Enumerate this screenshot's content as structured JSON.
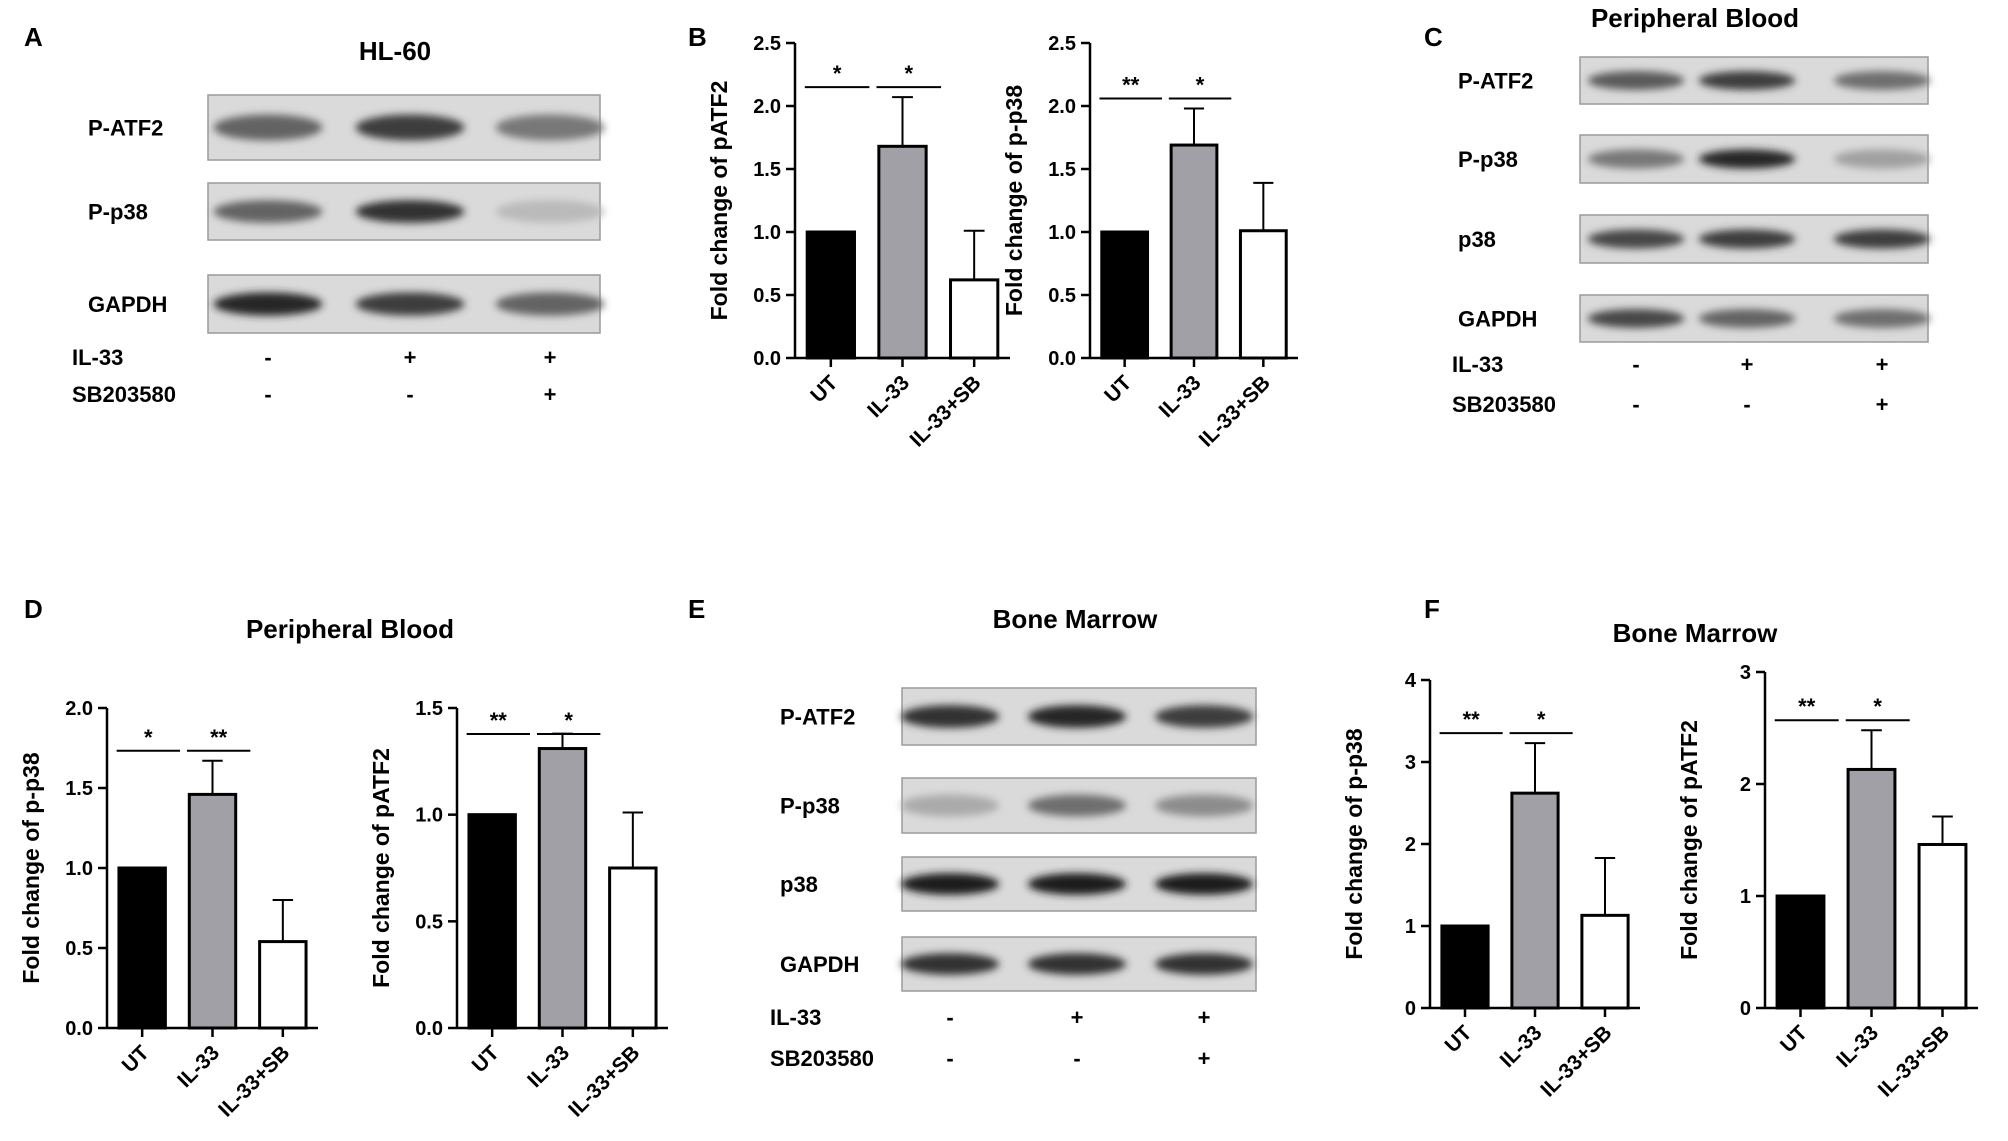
{
  "figure": {
    "panel_labels": [
      "A",
      "B",
      "C",
      "D",
      "E",
      "F"
    ],
    "titles": {
      "A": "HL-60",
      "C": "Peripheral Blood",
      "D": "Peripheral Blood",
      "E": "Bone Marrow",
      "F": "Bone Marrow"
    }
  },
  "blots": {
    "A": {
      "rows": [
        "P-ATF2",
        "P-p38",
        "GAPDH"
      ],
      "treatments": [
        {
          "name": "IL-33",
          "values": [
            "-",
            "+",
            "+"
          ]
        },
        {
          "name": "SB203580",
          "values": [
            "-",
            "-",
            "+"
          ]
        }
      ],
      "band_intensity": [
        [
          0.55,
          0.75,
          0.45
        ],
        [
          0.55,
          0.8,
          0.12
        ],
        [
          0.85,
          0.75,
          0.55
        ]
      ]
    },
    "C": {
      "rows": [
        "P-ATF2",
        "P-p38",
        "p38",
        "GAPDH"
      ],
      "treatments": [
        {
          "name": "IL-33",
          "values": [
            "-",
            "+",
            "+"
          ]
        },
        {
          "name": "SB203580",
          "values": [
            "-",
            "-",
            "+"
          ]
        }
      ],
      "band_intensity": [
        [
          0.6,
          0.75,
          0.5
        ],
        [
          0.45,
          0.85,
          0.25
        ],
        [
          0.7,
          0.75,
          0.75
        ],
        [
          0.7,
          0.55,
          0.5
        ]
      ]
    },
    "E": {
      "rows": [
        "P-ATF2",
        "P-p38",
        "p38",
        "GAPDH"
      ],
      "treatments": [
        {
          "name": "IL-33",
          "values": [
            "-",
            "+",
            "+"
          ]
        },
        {
          "name": "SB203580",
          "values": [
            "-",
            "-",
            "+"
          ]
        }
      ],
      "band_intensity": [
        [
          0.8,
          0.85,
          0.75
        ],
        [
          0.2,
          0.5,
          0.35
        ],
        [
          0.9,
          0.9,
          0.9
        ],
        [
          0.8,
          0.8,
          0.8
        ]
      ]
    }
  },
  "chart_data": [
    {
      "panel": "B",
      "type": "bar",
      "categories": [
        "UT",
        "IL-33",
        "IL-33+SB"
      ],
      "values": [
        1.0,
        1.68,
        0.62
      ],
      "errors": [
        0,
        0.39,
        0.39
      ],
      "ylabel": "Fold change of pATF2",
      "ylim": [
        0,
        2.5
      ],
      "yticks": [
        "0.0",
        "0.5",
        "1.0",
        "1.5",
        "2.0",
        "2.5"
      ],
      "colors": [
        "#000000",
        "#a0a0a6",
        "#ffffff"
      ],
      "significance": [
        {
          "from": 0,
          "to": 1,
          "label": "*"
        },
        {
          "from": 1,
          "to": 2,
          "label": "*"
        }
      ]
    },
    {
      "panel": "B",
      "type": "bar",
      "categories": [
        "UT",
        "IL-33",
        "IL-33+SB"
      ],
      "values": [
        1.0,
        1.69,
        1.01
      ],
      "errors": [
        0,
        0.29,
        0.38
      ],
      "ylabel": "Fold change of p-p38",
      "ylim": [
        0,
        2.5
      ],
      "yticks": [
        "0.0",
        "0.5",
        "1.0",
        "1.5",
        "2.0",
        "2.5"
      ],
      "colors": [
        "#000000",
        "#a0a0a6",
        "#ffffff"
      ],
      "significance": [
        {
          "from": 0,
          "to": 1,
          "label": "**"
        },
        {
          "from": 1,
          "to": 2,
          "label": "*"
        }
      ]
    },
    {
      "panel": "D",
      "type": "bar",
      "categories": [
        "UT",
        "IL-33",
        "IL-33+SB"
      ],
      "values": [
        1.0,
        1.46,
        0.54
      ],
      "errors": [
        0,
        0.21,
        0.26
      ],
      "ylabel": "Fold change of p-p38",
      "ylim": [
        0,
        2.0
      ],
      "yticks": [
        "0.0",
        "0.5",
        "1.0",
        "1.5",
        "2.0"
      ],
      "colors": [
        "#000000",
        "#a0a0a6",
        "#ffffff"
      ],
      "significance": [
        {
          "from": 0,
          "to": 1,
          "label": "*"
        },
        {
          "from": 1,
          "to": 2,
          "label": "**"
        }
      ]
    },
    {
      "panel": "D",
      "type": "bar",
      "categories": [
        "UT",
        "IL-33",
        "IL-33+SB"
      ],
      "values": [
        1.0,
        1.31,
        0.75
      ],
      "errors": [
        0,
        0.07,
        0.26
      ],
      "ylabel": "Fold change of pATF2",
      "ylim": [
        0,
        1.5
      ],
      "yticks": [
        "0.0",
        "0.5",
        "1.0",
        "1.5"
      ],
      "colors": [
        "#000000",
        "#a0a0a6",
        "#ffffff"
      ],
      "significance": [
        {
          "from": 0,
          "to": 1,
          "label": "**"
        },
        {
          "from": 1,
          "to": 2,
          "label": "*"
        }
      ]
    },
    {
      "panel": "F",
      "type": "bar",
      "categories": [
        "UT",
        "IL-33",
        "IL-33+SB"
      ],
      "values": [
        1.0,
        2.62,
        1.13
      ],
      "errors": [
        0,
        0.61,
        0.7
      ],
      "ylabel": "Fold change of p-p38",
      "ylim": [
        0,
        4
      ],
      "yticks": [
        "0",
        "1",
        "2",
        "3",
        "4"
      ],
      "colors": [
        "#000000",
        "#a0a0a6",
        "#ffffff"
      ],
      "significance": [
        {
          "from": 0,
          "to": 1,
          "label": "**"
        },
        {
          "from": 1,
          "to": 2,
          "label": "*"
        }
      ]
    },
    {
      "panel": "F",
      "type": "bar",
      "categories": [
        "UT",
        "IL-33",
        "IL-33+SB"
      ],
      "values": [
        1.0,
        2.13,
        1.46
      ],
      "errors": [
        0,
        0.35,
        0.25
      ],
      "ylabel": "Fold change of pATF2",
      "ylim": [
        0,
        3
      ],
      "yticks": [
        "0",
        "1",
        "2",
        "3"
      ],
      "colors": [
        "#000000",
        "#a0a0a6",
        "#ffffff"
      ],
      "significance": [
        {
          "from": 0,
          "to": 1,
          "label": "**"
        },
        {
          "from": 1,
          "to": 2,
          "label": "*"
        }
      ]
    }
  ]
}
